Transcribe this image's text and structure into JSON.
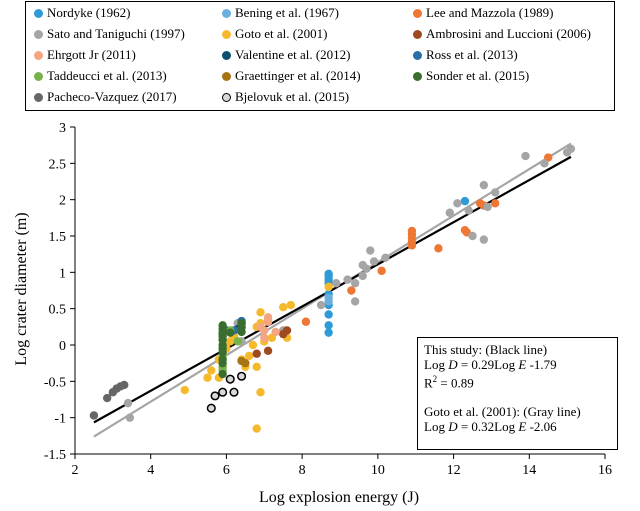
{
  "chart_data": {
    "type": "scatter",
    "xlabel": "Log explosion energy (J)",
    "ylabel": "Log crater diameter (m)",
    "xlim": [
      2,
      16
    ],
    "ylim": [
      -1.5,
      3
    ],
    "xticks": [
      "2",
      "4",
      "6",
      "8",
      "10",
      "12",
      "14",
      "16"
    ],
    "yticks": [
      "3",
      "2.5",
      "2",
      "1.5",
      "1",
      "0.5",
      "0",
      "-0.5",
      "-1",
      "-1.5"
    ],
    "grid": false,
    "legend_position": "top",
    "series": [
      {
        "name": "Nordyke (1962)",
        "color": "#2E9BD6",
        "points": [
          [
            8.7,
            0.98
          ],
          [
            8.7,
            0.95
          ],
          [
            8.7,
            0.9
          ],
          [
            8.7,
            0.85
          ],
          [
            8.7,
            0.7
          ],
          [
            8.7,
            0.55
          ],
          [
            8.7,
            0.42
          ],
          [
            8.7,
            0.27
          ],
          [
            8.7,
            0.17
          ],
          [
            12.3,
            1.98
          ]
        ]
      },
      {
        "name": "Bening et al. (1967)",
        "color": "#6BAEE0",
        "points": [
          [
            8.7,
            0.6
          ],
          [
            8.7,
            0.65
          ]
        ]
      },
      {
        "name": "Lee and Mazzola (1989)",
        "color": "#EE7733",
        "points": [
          [
            10.1,
            1.02
          ],
          [
            10.9,
            1.57
          ],
          [
            10.9,
            1.52
          ],
          [
            10.9,
            1.47
          ],
          [
            10.9,
            1.42
          ],
          [
            10.9,
            1.37
          ],
          [
            11.6,
            1.33
          ],
          [
            12.3,
            1.58
          ],
          [
            12.35,
            1.55
          ],
          [
            12.7,
            1.95
          ],
          [
            12.8,
            1.92
          ],
          [
            13.1,
            1.95
          ],
          [
            14.5,
            2.58
          ],
          [
            9.3,
            0.75
          ],
          [
            8.1,
            0.32
          ]
        ]
      },
      {
        "name": "Sato and Taniguchi (1997)",
        "color": "#A5A5A5",
        "points": [
          [
            3.4,
            -0.8
          ],
          [
            3.45,
            -1.0
          ],
          [
            6.3,
            0.3
          ],
          [
            6.4,
            0.05
          ],
          [
            7.5,
            0.2
          ],
          [
            8.5,
            0.55
          ],
          [
            8.9,
            0.85
          ],
          [
            9.2,
            0.9
          ],
          [
            9.4,
            0.85
          ],
          [
            9.4,
            0.6
          ],
          [
            9.6,
            1.1
          ],
          [
            9.7,
            1.05
          ],
          [
            9.8,
            1.3
          ],
          [
            9.9,
            1.15
          ],
          [
            10.2,
            1.2
          ],
          [
            9.6,
            0.95
          ],
          [
            11.9,
            1.82
          ],
          [
            12.1,
            1.95
          ],
          [
            12.4,
            1.85
          ],
          [
            12.5,
            1.5
          ],
          [
            12.8,
            1.45
          ],
          [
            12.8,
            2.2
          ],
          [
            12.9,
            1.9
          ],
          [
            13.1,
            2.1
          ],
          [
            13.9,
            2.6
          ],
          [
            14.4,
            2.5
          ],
          [
            15.0,
            2.65
          ],
          [
            15.1,
            2.7
          ]
        ]
      },
      {
        "name": "Goto et al. (2001)",
        "color": "#F6B92B",
        "points": [
          [
            4.9,
            -0.62
          ],
          [
            5.5,
            -0.45
          ],
          [
            5.6,
            -0.35
          ],
          [
            5.8,
            -0.2
          ],
          [
            5.8,
            -0.45
          ],
          [
            5.9,
            -0.3
          ],
          [
            6.0,
            -0.05
          ],
          [
            6.1,
            0.05
          ],
          [
            6.2,
            0.12
          ],
          [
            6.4,
            -0.2
          ],
          [
            6.5,
            -0.3
          ],
          [
            6.6,
            -0.15
          ],
          [
            6.7,
            0.0
          ],
          [
            6.8,
            0.25
          ],
          [
            6.8,
            -0.3
          ],
          [
            6.9,
            0.3
          ],
          [
            6.9,
            0.45
          ],
          [
            7.0,
            0.05
          ],
          [
            7.1,
            0.35
          ],
          [
            7.2,
            0.1
          ],
          [
            7.5,
            0.52
          ],
          [
            7.6,
            0.1
          ],
          [
            7.7,
            0.55
          ],
          [
            6.9,
            -0.65
          ],
          [
            6.8,
            -1.15
          ],
          [
            8.7,
            0.8
          ]
        ]
      },
      {
        "name": "Ambrosini and Luccioni (2006)",
        "color": "#9E4A1E",
        "points": [
          [
            6.8,
            -0.12
          ],
          [
            7.1,
            -0.08
          ],
          [
            7.5,
            0.15
          ],
          [
            7.6,
            0.2
          ]
        ]
      },
      {
        "name": "Ehrgott Jr (2011)",
        "color": "#F4A582",
        "points": [
          [
            6.9,
            0.25
          ],
          [
            7.0,
            0.2
          ],
          [
            7.1,
            0.32
          ],
          [
            7.0,
            0.1
          ],
          [
            7.1,
            0.38
          ],
          [
            7.3,
            0.18
          ]
        ]
      },
      {
        "name": "Valentine et al. (2012)",
        "color": "#0C4F70",
        "points": [
          [
            6.0,
            0.2
          ],
          [
            6.1,
            0.18
          ],
          [
            6.3,
            0.22
          ],
          [
            6.4,
            0.3
          ],
          [
            6.4,
            0.25
          ]
        ]
      },
      {
        "name": "Ross et al. (2013)",
        "color": "#2B6FA8",
        "points": [
          [
            5.9,
            0.15
          ],
          [
            6.2,
            0.2
          ],
          [
            6.4,
            0.33
          ]
        ]
      },
      {
        "name": "Taddeucci et al. (2013)",
        "color": "#76B34A",
        "points": [
          [
            5.9,
            -0.15
          ],
          [
            5.9,
            -0.35
          ],
          [
            5.9,
            -0.3
          ],
          [
            6.1,
            0.2
          ],
          [
            6.3,
            0.05
          ]
        ]
      },
      {
        "name": "Graettinger et al. (2014)",
        "color": "#A57414",
        "points": [
          [
            6.4,
            -0.22
          ],
          [
            6.5,
            -0.25
          ]
        ]
      },
      {
        "name": "Sonder et al. (2015)",
        "color": "#3A6E30",
        "points": [
          [
            5.9,
            0.27
          ],
          [
            5.9,
            0.22
          ],
          [
            5.9,
            0.17
          ],
          [
            5.9,
            0.12
          ],
          [
            5.9,
            0.07
          ],
          [
            5.9,
            0.0
          ],
          [
            5.9,
            -0.05
          ],
          [
            5.9,
            -0.1
          ],
          [
            5.9,
            -0.2
          ],
          [
            5.9,
            -0.25
          ],
          [
            5.9,
            -0.4
          ],
          [
            6.1,
            0.17
          ],
          [
            6.4,
            0.3
          ],
          [
            6.4,
            0.24
          ],
          [
            6.4,
            0.18
          ]
        ]
      },
      {
        "name": "Pacheco-Vazquez (2017)",
        "color": "#666666",
        "points": [
          [
            2.5,
            -0.97
          ],
          [
            2.85,
            -0.73
          ],
          [
            3.0,
            -0.65
          ],
          [
            3.1,
            -0.6
          ],
          [
            3.2,
            -0.57
          ],
          [
            3.3,
            -0.55
          ]
        ]
      },
      {
        "name": "Bjelovuk et al. (2015)",
        "color": "#D9D9D9",
        "edge": "#000000",
        "points": [
          [
            5.6,
            -0.87
          ],
          [
            5.7,
            -0.7
          ],
          [
            5.9,
            -0.65
          ],
          [
            6.1,
            -0.47
          ],
          [
            6.2,
            -0.65
          ],
          [
            6.4,
            -0.43
          ]
        ]
      }
    ],
    "fit_lines": [
      {
        "name": "This study",
        "color": "#000000",
        "slope": 0.29,
        "intercept": -1.79,
        "x_range": [
          2.5,
          15.1
        ]
      },
      {
        "name": "Goto et al. (2001)",
        "color": "#A5A5A5",
        "slope": 0.32,
        "intercept": -2.06,
        "x_range": [
          2.5,
          15.1
        ]
      }
    ],
    "annotation": {
      "lines": [
        "This study: (Black line)",
        "Log D = 0.29Log E -1.79",
        "R2 = 0.89",
        "Goto et al. (2001): (Gray line)",
        "Log D = 0.32Log E -2.06"
      ]
    }
  }
}
